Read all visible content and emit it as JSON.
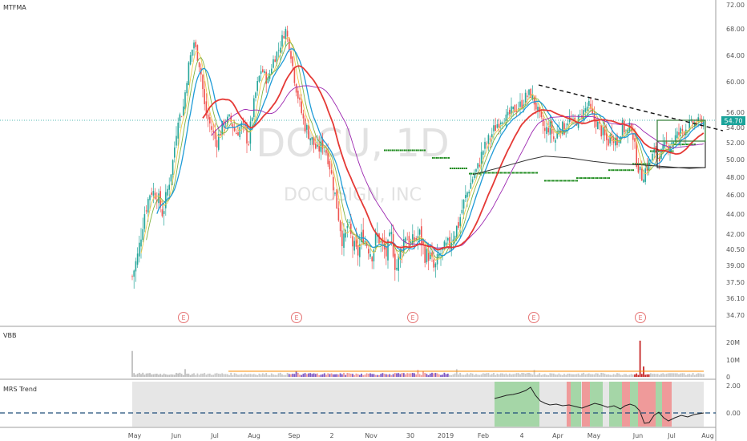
{
  "chart_data": {
    "type": "candlestick",
    "panes": {
      "price": {
        "indicator_label": "MTFMA",
        "watermark": {
          "symbol": "DOCU, 1D",
          "name": "DOCUSIGN, INC"
        },
        "last_price": "54.70",
        "y_ticks": [
          "72.00",
          "68.00",
          "64.00",
          "60.00",
          "56.00",
          "54.00",
          "52.00",
          "50.00",
          "48.00",
          "46.00",
          "44.00",
          "42.00",
          "40.50",
          "39.00",
          "37.50",
          "36.10",
          "34.70"
        ],
        "earnings_marker": "E"
      },
      "volume": {
        "indicator_label": "VBB",
        "y_ticks": [
          "20M",
          "10M",
          "0"
        ]
      },
      "trend": {
        "indicator_label": "MRS Trend",
        "y_ticks": [
          "2.00",
          "0.00"
        ]
      }
    },
    "x_labels": [
      "May",
      "Jun",
      "Jul",
      "Aug",
      "Sep",
      "2",
      "Nov",
      "30",
      "2019",
      "Feb",
      "4",
      "Apr",
      "May",
      "Jun",
      "Jul",
      "Aug"
    ],
    "colors": {
      "up": "#26a69a",
      "down": "#ef5350",
      "ma_slow": "#e53935",
      "ma_mid": "#1e9bd7",
      "ma_long": "#9c27b0",
      "ma_200": "#333333",
      "dots": "#1b8a1b",
      "earnings": "#e57373",
      "trend_green": "#a5d6a7",
      "trend_red": "#ef9a9a",
      "trend_grey": "#e6e6e6"
    }
  }
}
